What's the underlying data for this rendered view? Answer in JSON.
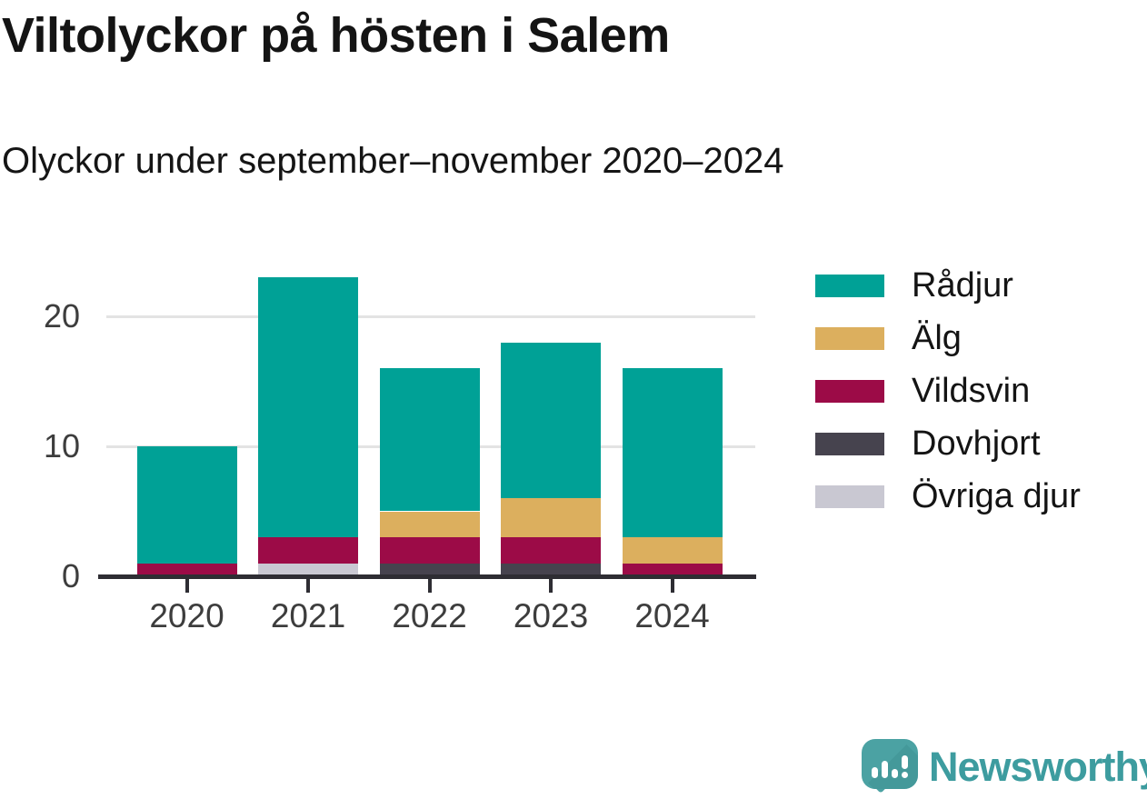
{
  "header": {
    "title": "Viltolyckor på hösten i Salem",
    "subtitle": "Olyckor under september–november 2020–2024"
  },
  "chart_data": {
    "type": "bar",
    "stacked": true,
    "title": "Viltolyckor på hösten i Salem",
    "subtitle": "Olyckor under september–november 2020–2024",
    "xlabel": "",
    "ylabel": "",
    "categories": [
      "2020",
      "2021",
      "2022",
      "2023",
      "2024"
    ],
    "series": [
      {
        "name": "Rådjur",
        "color": "#00a196",
        "values": [
          9,
          20,
          11,
          12,
          13
        ]
      },
      {
        "name": "Älg",
        "color": "#dcaf5e",
        "values": [
          0,
          0,
          2,
          3,
          2
        ]
      },
      {
        "name": "Vildsvin",
        "color": "#9c0b47",
        "values": [
          1,
          2,
          2,
          2,
          1
        ]
      },
      {
        "name": "Dovhjort",
        "color": "#46434e",
        "values": [
          0,
          0,
          1,
          1,
          0
        ]
      },
      {
        "name": "Övriga djur",
        "color": "#c9c8d2",
        "values": [
          0,
          1,
          0,
          0,
          0
        ]
      }
    ],
    "stack_order_bottom_to_top": [
      "Övriga djur",
      "Dovhjort",
      "Vildsvin",
      "Älg",
      "Rådjur"
    ],
    "totals": [
      10,
      23,
      16,
      18,
      16
    ],
    "yticks": [
      0,
      10,
      20
    ],
    "ytick_labels": [
      "0",
      "10",
      "20"
    ],
    "ylim": [
      0,
      25
    ],
    "grid": "horizontal",
    "legend_position": "right"
  },
  "colors": {
    "background": "#ffffff",
    "axis_line": "#2e2d33",
    "gridline": "#e3e3e3",
    "axis_text": "#3d3d3d",
    "title_text": "#141414",
    "logo_teal": "#3d9c9f",
    "logo_mark_teal": "#4ba2a3"
  },
  "branding": {
    "logo_text": "Newsworthy"
  }
}
